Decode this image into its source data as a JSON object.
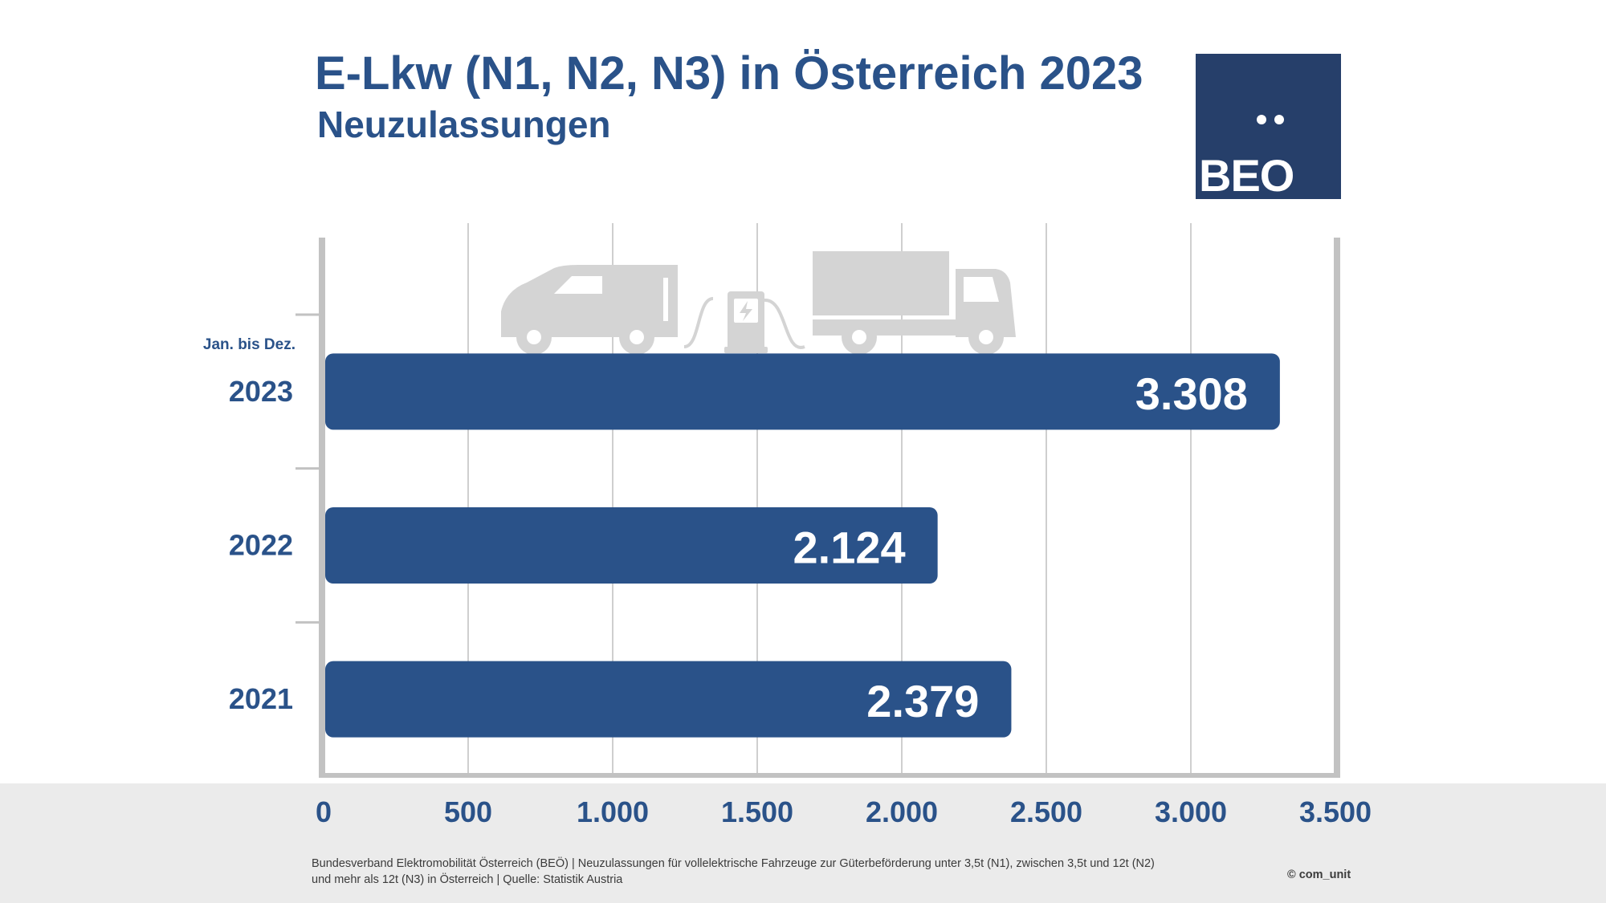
{
  "header": {
    "title": "E-Lkw (N1, N2, N3) in Österreich 2023",
    "subtitle": "Neuzulassungen"
  },
  "logo": {
    "text": "BEO"
  },
  "chart_data": {
    "type": "bar",
    "orientation": "horizontal",
    "title": "E-Lkw (N1, N2, N3) in Österreich 2023",
    "subtitle": "Neuzulassungen",
    "period_label": "Jan. bis Dez.",
    "categories": [
      "2023",
      "2022",
      "2021"
    ],
    "values": [
      3308,
      2124,
      2379
    ],
    "value_labels": [
      "3.308",
      "2.124",
      "2.379"
    ],
    "xlim": [
      0,
      3500
    ],
    "x_ticks": [
      0,
      500,
      1000,
      1500,
      2000,
      2500,
      3000,
      3500
    ],
    "x_tick_labels": [
      "0",
      "500",
      "1.000",
      "1.500",
      "2.000",
      "2.500",
      "3.000",
      "3.500"
    ],
    "grid": true,
    "legend": "none",
    "bar_color": "#2a5289",
    "tick_label_color": "#2a5289"
  },
  "footer": {
    "source_line1": "Bundesverband Elektromobilität Österreich (BEÖ) | Neuzulassungen für vollelektrische Fahrzeuge zur Güterbeförderung unter 3,5t (N1), zwischen 3,5t und 12t (N2)",
    "source_line2": "und mehr als 12t (N3) in Österreich | Quelle: Statistik Austria",
    "copyright": "© com_unit"
  },
  "icons": [
    "van-icon",
    "charging-station-icon",
    "truck-icon"
  ]
}
